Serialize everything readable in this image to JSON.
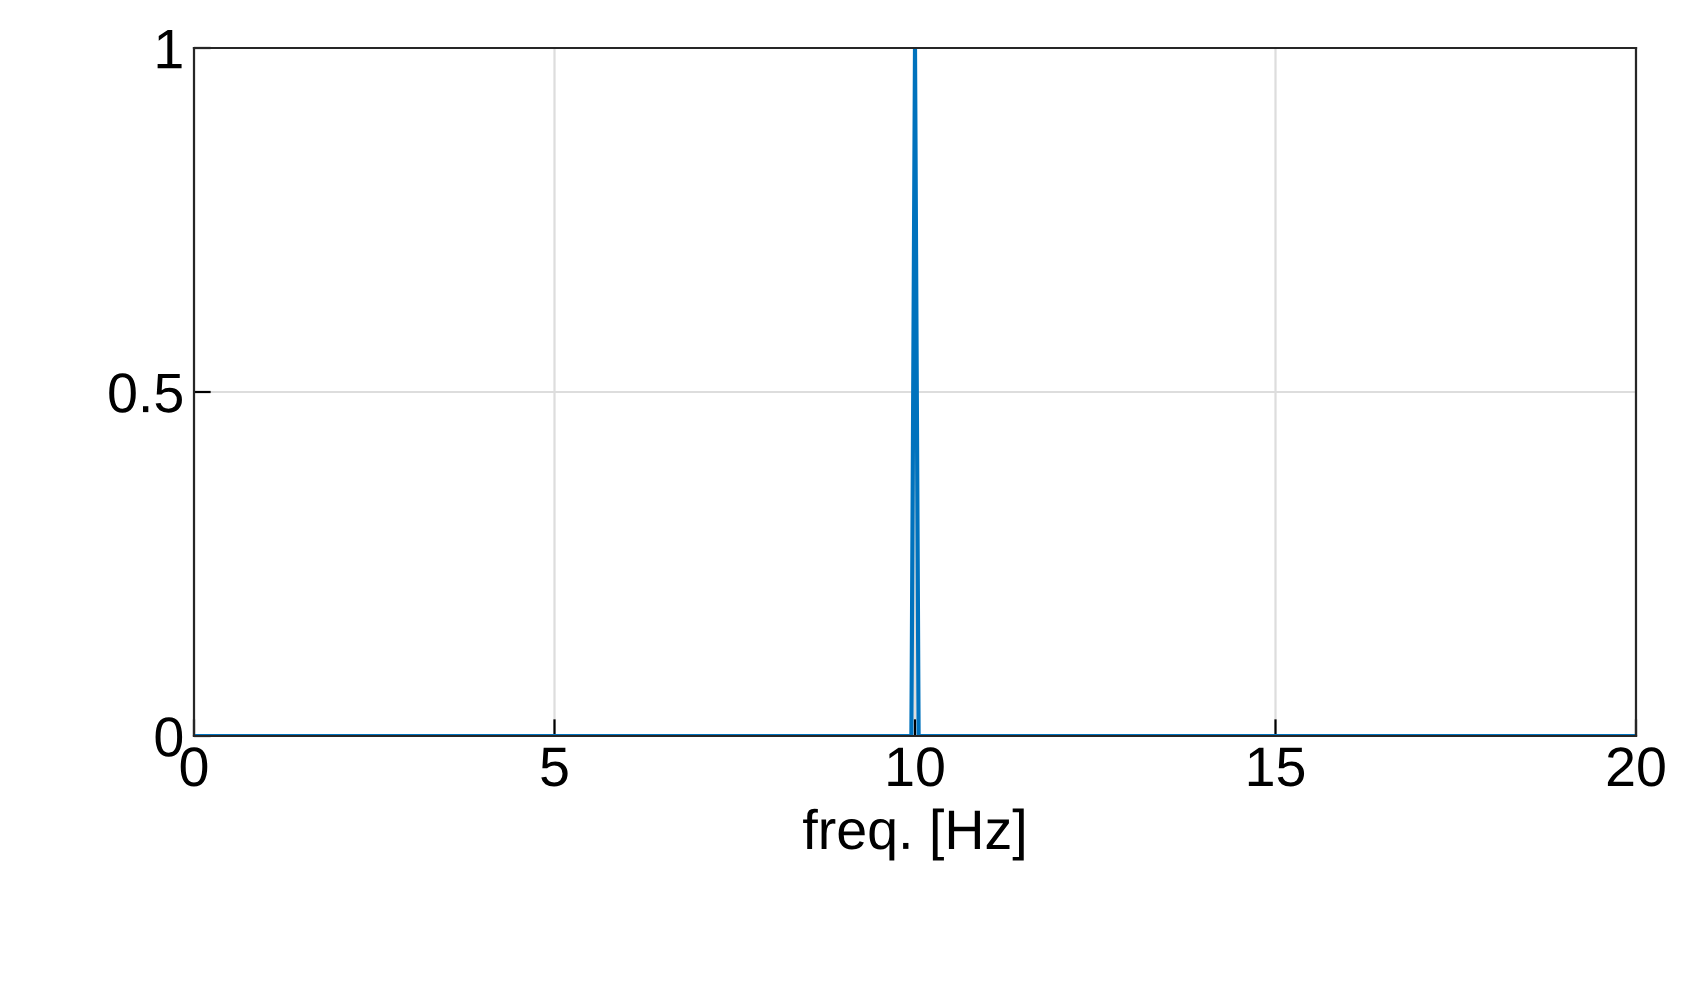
{
  "chart_data": {
    "type": "line",
    "xlabel": "freq. [Hz]",
    "x": [
      0,
      9.95,
      10,
      10.05,
      20
    ],
    "series": [
      {
        "color": "#0072bd",
        "values": [
          0,
          0,
          1,
          0,
          0
        ]
      }
    ],
    "xlim": [
      0,
      20
    ],
    "ylim": [
      0,
      1
    ],
    "xticks": [
      0,
      5,
      10,
      15,
      20
    ],
    "yticks": [
      0,
      0.5,
      1
    ],
    "grid": true,
    "marker": "none",
    "line_style": "solid"
  }
}
